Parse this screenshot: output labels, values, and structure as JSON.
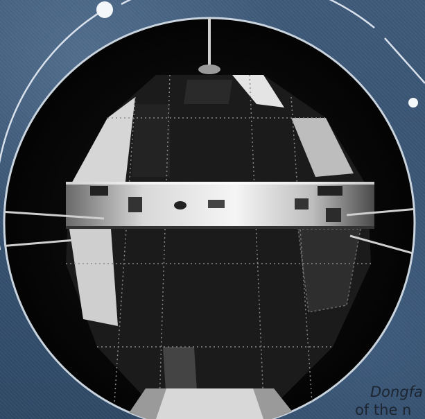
{
  "caption": {
    "name": "Dongfa",
    "rest": "of the n"
  }
}
